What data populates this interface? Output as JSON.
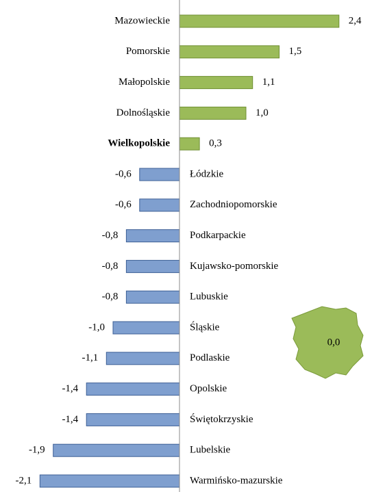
{
  "chart_data": {
    "type": "bar",
    "orientation": "horizontal",
    "categories": [
      "Mazowieckie",
      "Pomorskie",
      "Małopolskie",
      "Dolnośląskie",
      "Wielkopolskie",
      "Łódzkie",
      "Zachodniopomorskie",
      "Podkarpackie",
      "Kujawsko-pomorskie",
      "Lubuskie",
      "Śląskie",
      "Podlaskie",
      "Opolskie",
      "Świętokrzyskie",
      "Lubelskie",
      "Warmińsko-mazurskie"
    ],
    "values": [
      2.4,
      1.5,
      1.1,
      1.0,
      0.3,
      -0.6,
      -0.6,
      -0.8,
      -0.8,
      -0.8,
      -1.0,
      -1.1,
      -1.4,
      -1.4,
      -1.9,
      -2.1
    ],
    "value_labels": [
      "2,4",
      "1,5",
      "1,1",
      "1,0",
      "0,3",
      "-0,6",
      "-0,6",
      "-0,8",
      "-0,8",
      "-0,8",
      "-1,0",
      "-1,1",
      "-1,4",
      "-1,4",
      "-1,9",
      "-2,1"
    ],
    "color_positive": "#9bbb59",
    "color_negative": "#7f9fcf",
    "highlight": 4,
    "xlim": [
      -2.5,
      2.5
    ],
    "annotation": "0,0",
    "annotation_color": "#9bbb59"
  }
}
